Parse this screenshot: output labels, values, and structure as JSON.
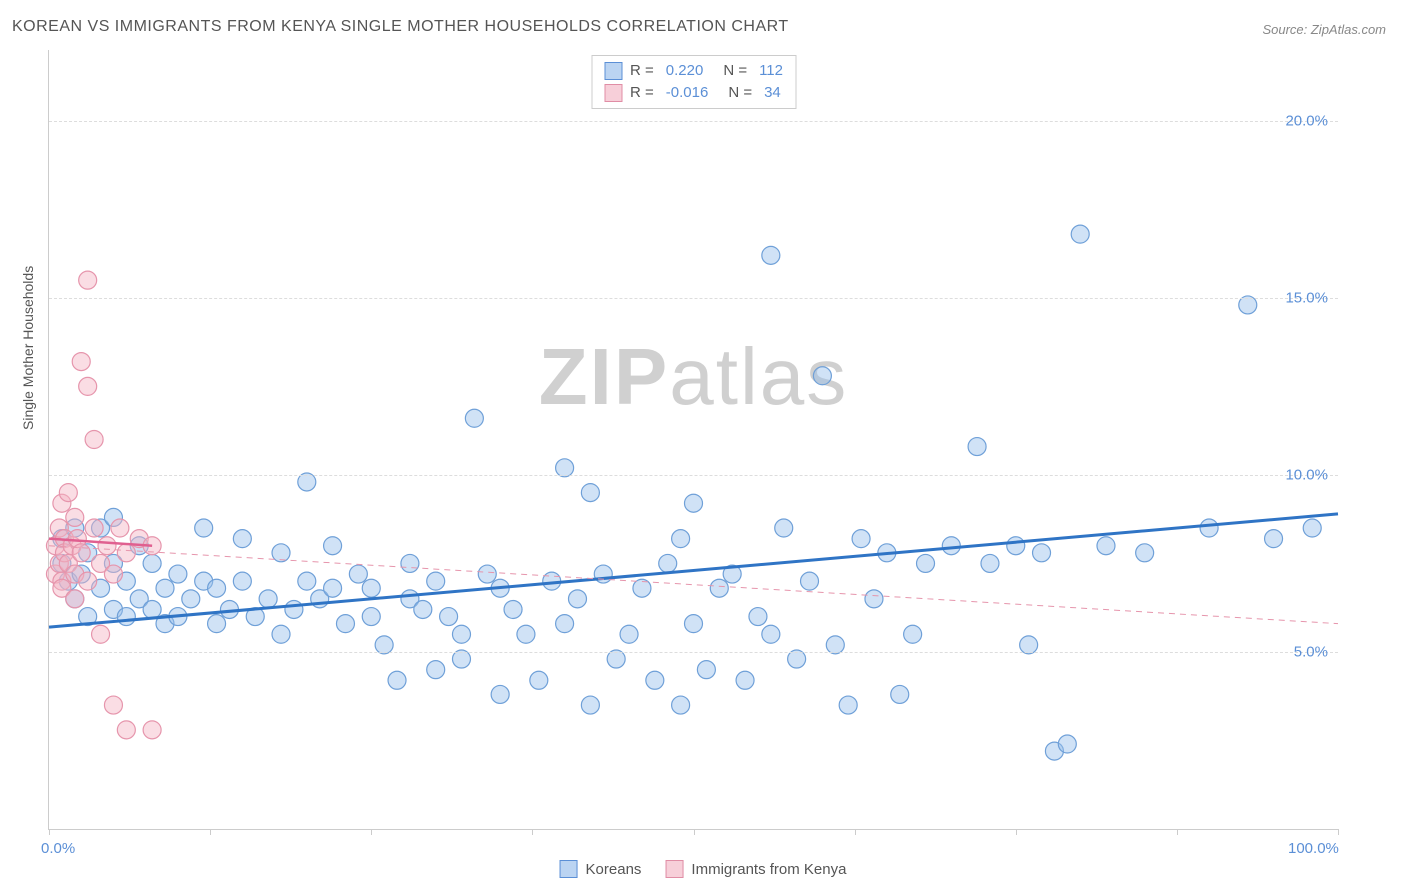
{
  "title": "KOREAN VS IMMIGRANTS FROM KENYA SINGLE MOTHER HOUSEHOLDS CORRELATION CHART",
  "source": "Source: ZipAtlas.com",
  "watermark_left": "ZIP",
  "watermark_right": "atlas",
  "y_axis_label": "Single Mother Households",
  "chart": {
    "type": "scatter",
    "xlim": [
      0,
      100
    ],
    "ylim": [
      0,
      22
    ],
    "x_ticks": [
      0,
      12.5,
      25,
      37.5,
      50,
      62.5,
      75,
      87.5,
      100
    ],
    "x_tick_labels_shown": {
      "0": "0.0%",
      "100": "100.0%"
    },
    "y_gridlines": [
      5,
      10,
      15,
      20
    ],
    "y_tick_labels": {
      "5": "5.0%",
      "10": "10.0%",
      "15": "15.0%",
      "20": "20.0%"
    },
    "background_color": "#ffffff",
    "grid_color": "#dddddd",
    "marker_radius": 9,
    "marker_stroke_width": 1.2,
    "series": [
      {
        "name": "Koreans",
        "color_fill": "rgba(150,190,235,0.45)",
        "color_stroke": "#6fa0d8",
        "R": "0.220",
        "N": "112",
        "trend": {
          "x1": 0,
          "y1": 5.7,
          "x2": 100,
          "y2": 8.9,
          "color": "#2f74c5",
          "width": 3,
          "dash": "none"
        },
        "points": [
          [
            1,
            7.5
          ],
          [
            1,
            8.2
          ],
          [
            1.5,
            7
          ],
          [
            2,
            8.5
          ],
          [
            2,
            6.5
          ],
          [
            2.5,
            7.2
          ],
          [
            3,
            6
          ],
          [
            3,
            7.8
          ],
          [
            4,
            6.8
          ],
          [
            4,
            8.5
          ],
          [
            5,
            6.2
          ],
          [
            5,
            7.5
          ],
          [
            5,
            8.8
          ],
          [
            6,
            6
          ],
          [
            6,
            7
          ],
          [
            7,
            6.5
          ],
          [
            7,
            8
          ],
          [
            8,
            6.2
          ],
          [
            8,
            7.5
          ],
          [
            9,
            6.8
          ],
          [
            9,
            5.8
          ],
          [
            10,
            6
          ],
          [
            10,
            7.2
          ],
          [
            11,
            6.5
          ],
          [
            12,
            7
          ],
          [
            12,
            8.5
          ],
          [
            13,
            5.8
          ],
          [
            13,
            6.8
          ],
          [
            14,
            6.2
          ],
          [
            15,
            7
          ],
          [
            15,
            8.2
          ],
          [
            16,
            6
          ],
          [
            17,
            6.5
          ],
          [
            18,
            7.8
          ],
          [
            18,
            5.5
          ],
          [
            19,
            6.2
          ],
          [
            20,
            9.8
          ],
          [
            20,
            7
          ],
          [
            21,
            6.5
          ],
          [
            22,
            6.8
          ],
          [
            22,
            8
          ],
          [
            23,
            5.8
          ],
          [
            24,
            7.2
          ],
          [
            25,
            6
          ],
          [
            25,
            6.8
          ],
          [
            26,
            5.2
          ],
          [
            27,
            4.2
          ],
          [
            28,
            6.5
          ],
          [
            28,
            7.5
          ],
          [
            29,
            6.2
          ],
          [
            30,
            7
          ],
          [
            30,
            4.5
          ],
          [
            31,
            6
          ],
          [
            32,
            5.5
          ],
          [
            32,
            4.8
          ],
          [
            33,
            11.6
          ],
          [
            34,
            7.2
          ],
          [
            35,
            6.8
          ],
          [
            35,
            3.8
          ],
          [
            36,
            6.2
          ],
          [
            37,
            5.5
          ],
          [
            38,
            4.2
          ],
          [
            39,
            7
          ],
          [
            40,
            10.2
          ],
          [
            40,
            5.8
          ],
          [
            41,
            6.5
          ],
          [
            42,
            9.5
          ],
          [
            42,
            3.5
          ],
          [
            43,
            7.2
          ],
          [
            44,
            4.8
          ],
          [
            45,
            5.5
          ],
          [
            46,
            6.8
          ],
          [
            47,
            4.2
          ],
          [
            48,
            7.5
          ],
          [
            49,
            8.2
          ],
          [
            49,
            3.5
          ],
          [
            50,
            9.2
          ],
          [
            50,
            5.8
          ],
          [
            51,
            4.5
          ],
          [
            52,
            6.8
          ],
          [
            53,
            7.2
          ],
          [
            54,
            4.2
          ],
          [
            55,
            6
          ],
          [
            56,
            5.5
          ],
          [
            56,
            16.2
          ],
          [
            57,
            8.5
          ],
          [
            58,
            4.8
          ],
          [
            59,
            7
          ],
          [
            60,
            12.8
          ],
          [
            61,
            5.2
          ],
          [
            62,
            3.5
          ],
          [
            63,
            8.2
          ],
          [
            64,
            6.5
          ],
          [
            65,
            7.8
          ],
          [
            66,
            3.8
          ],
          [
            67,
            5.5
          ],
          [
            68,
            7.5
          ],
          [
            70,
            8
          ],
          [
            72,
            10.8
          ],
          [
            73,
            7.5
          ],
          [
            75,
            8
          ],
          [
            76,
            5.2
          ],
          [
            77,
            7.8
          ],
          [
            78,
            2.2
          ],
          [
            79,
            2.4
          ],
          [
            80,
            16.8
          ],
          [
            82,
            8
          ],
          [
            85,
            7.8
          ],
          [
            90,
            8.5
          ],
          [
            93,
            14.8
          ],
          [
            95,
            8.2
          ],
          [
            98,
            8.5
          ]
        ]
      },
      {
        "name": "Immigrants from Kenya",
        "color_fill": "rgba(245,180,195,0.45)",
        "color_stroke": "#e695ac",
        "R": "-0.016",
        "N": "34",
        "trend": {
          "x1": 0,
          "y1": 8.0,
          "x2": 100,
          "y2": 5.8,
          "color": "#e695ac",
          "width": 1,
          "dash": "6,5"
        },
        "trend_solid": {
          "x1": 0,
          "y1": 8.2,
          "x2": 8,
          "y2": 8.0,
          "color": "#e06090",
          "width": 2.5
        },
        "points": [
          [
            0.5,
            7.2
          ],
          [
            0.5,
            8
          ],
          [
            0.8,
            7.5
          ],
          [
            0.8,
            8.5
          ],
          [
            1,
            7
          ],
          [
            1,
            9.2
          ],
          [
            1,
            6.8
          ],
          [
            1.2,
            8.2
          ],
          [
            1.2,
            7.8
          ],
          [
            1.5,
            7.5
          ],
          [
            1.5,
            9.5
          ],
          [
            1.8,
            8
          ],
          [
            2,
            7.2
          ],
          [
            2,
            8.8
          ],
          [
            2,
            6.5
          ],
          [
            2.2,
            8.2
          ],
          [
            2.5,
            7.8
          ],
          [
            2.5,
            13.2
          ],
          [
            3,
            12.5
          ],
          [
            3,
            7
          ],
          [
            3,
            15.5
          ],
          [
            3.5,
            8.5
          ],
          [
            3.5,
            11
          ],
          [
            4,
            5.5
          ],
          [
            4,
            7.5
          ],
          [
            4.5,
            8
          ],
          [
            5,
            3.5
          ],
          [
            5,
            7.2
          ],
          [
            5.5,
            8.5
          ],
          [
            6,
            2.8
          ],
          [
            6,
            7.8
          ],
          [
            7,
            8.2
          ],
          [
            8,
            2.8
          ],
          [
            8,
            8
          ]
        ]
      }
    ]
  },
  "legend_bottom": [
    {
      "label": "Koreans",
      "swatch": "blue"
    },
    {
      "label": "Immigrants from Kenya",
      "swatch": "pink"
    }
  ]
}
